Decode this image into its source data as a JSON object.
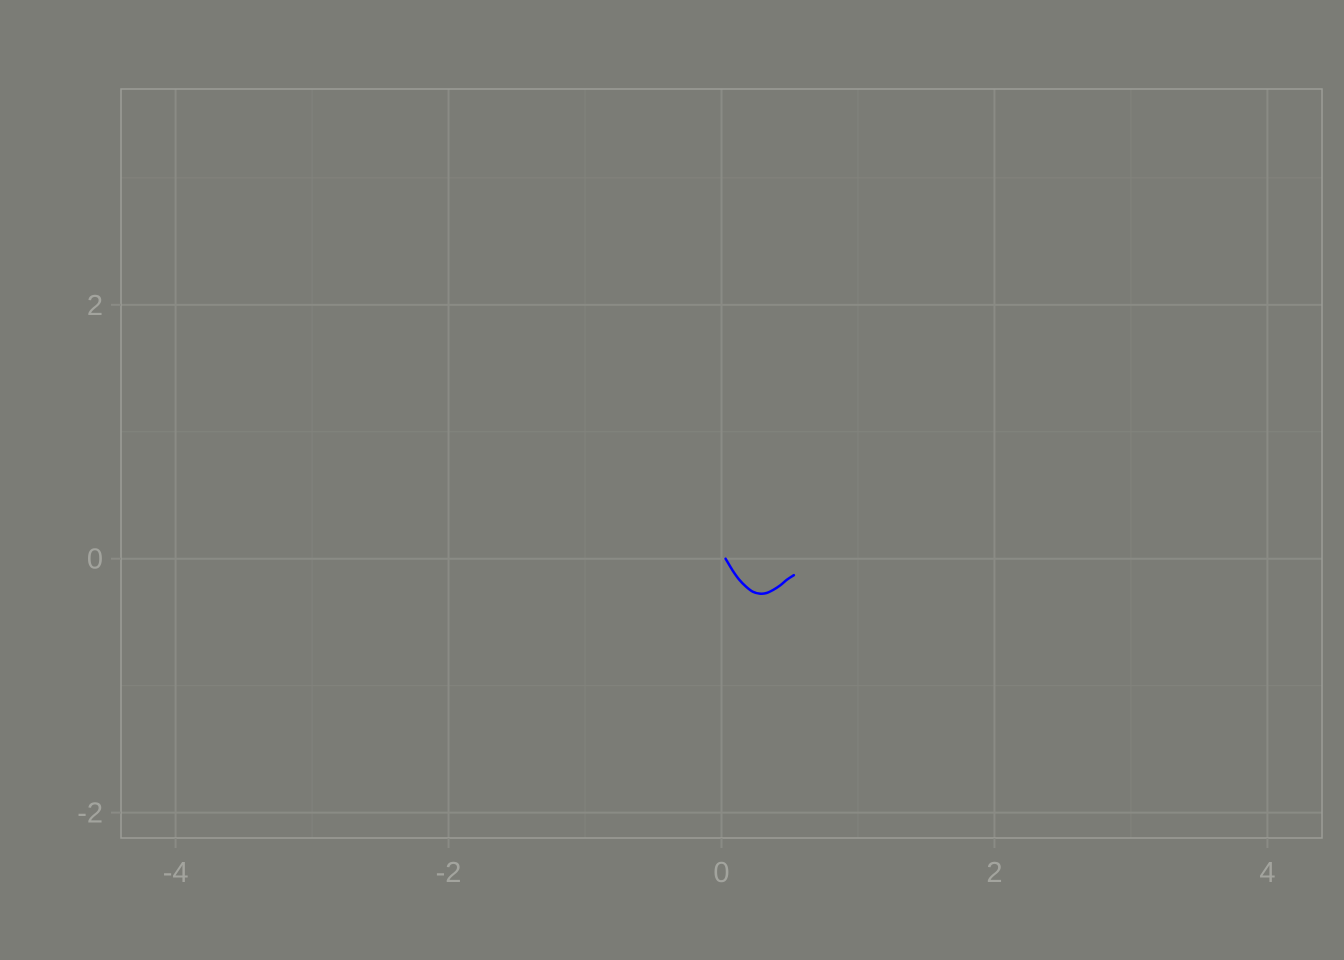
{
  "colors": {
    "background": "#7b7c76",
    "panel_border": "#9c9d97",
    "grid_major": "#8a8b85",
    "grid_minor": "#82837d",
    "tick_text": "#a3a49e",
    "series_line": "#0000ff"
  },
  "chart_data": {
    "type": "line",
    "title": "",
    "xlabel": "",
    "ylabel": "",
    "xlim": [
      -4.4,
      4.4
    ],
    "ylim": [
      -2.2,
      3.7
    ],
    "grid": true,
    "x_ticks": [
      -4,
      -2,
      0,
      2,
      4
    ],
    "x_tick_labels": [
      "-4",
      "-2",
      "0",
      "2",
      "4"
    ],
    "y_ticks": [
      -2,
      0,
      2
    ],
    "y_tick_labels": [
      "-2",
      "0",
      "2"
    ],
    "x_minor_ticks": [
      -3,
      -1,
      1,
      3
    ],
    "y_minor_ticks": [
      -1,
      1,
      3
    ],
    "series": [
      {
        "color": "#0000ff",
        "x": [
          0.03,
          0.08,
          0.13,
          0.18,
          0.23,
          0.28,
          0.33,
          0.38,
          0.43,
          0.48,
          0.53
        ],
        "y": [
          0.0,
          -0.09,
          -0.165,
          -0.22,
          -0.26,
          -0.275,
          -0.27,
          -0.245,
          -0.21,
          -0.165,
          -0.13
        ]
      }
    ]
  }
}
